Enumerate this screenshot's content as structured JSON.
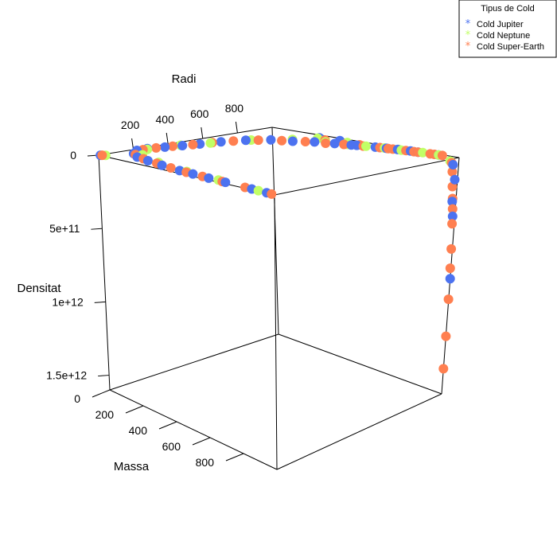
{
  "chart_data": {
    "type": "scatter",
    "title": "",
    "axes": {
      "x": {
        "label": "Massa",
        "ticks": [
          0,
          200,
          400,
          600,
          800
        ],
        "range": [
          0,
          1000
        ]
      },
      "y": {
        "label": "Radi",
        "ticks": [
          200,
          400,
          600,
          800
        ],
        "range": [
          0,
          1000
        ]
      },
      "z": {
        "label": "Densitat",
        "ticks": [
          0,
          500000000000,
          1000000000000,
          1500000000000
        ],
        "tick_labels": [
          "0",
          "5e+11",
          "1e+12",
          "1.5e+12"
        ],
        "range": [
          0,
          1600000000000
        ]
      }
    },
    "legend": {
      "title": "Tipus de Cold",
      "position": "top-right",
      "entries": [
        {
          "name": "Cold Jupiter",
          "color": "#4C72F0"
        },
        {
          "name": "Cold Neptune",
          "color": "#C2FF66"
        },
        {
          "name": "Cold Super-Earth",
          "color": "#FF7F50"
        }
      ]
    },
    "series": [
      {
        "name": "Cold Jupiter",
        "color": "#4C72F0",
        "points": [
          [
            950,
            5,
            1
          ],
          [
            860,
            10,
            2
          ],
          [
            700,
            20,
            3
          ],
          [
            600,
            25,
            4
          ],
          [
            500,
            35,
            5
          ],
          [
            420,
            40,
            6
          ],
          [
            300,
            60,
            7
          ],
          [
            200,
            80,
            8
          ],
          [
            120,
            100,
            9
          ],
          [
            60,
            140,
            10
          ],
          [
            20,
            200,
            10
          ],
          [
            20,
            260,
            12
          ],
          [
            40,
            340,
            14
          ],
          [
            60,
            420,
            15
          ],
          [
            80,
            500,
            16
          ],
          [
            100,
            600,
            18
          ],
          [
            140,
            700,
            20
          ],
          [
            200,
            780,
            25
          ],
          [
            280,
            820,
            30
          ],
          [
            350,
            870,
            35
          ],
          [
            430,
            900,
            40
          ],
          [
            520,
            930,
            60
          ],
          [
            600,
            950,
            100
          ],
          [
            700,
            970,
            150
          ],
          [
            760,
            980,
            200
          ],
          [
            980,
            990,
            50000000000
          ],
          [
            990,
            995,
            150000000000
          ],
          [
            985,
            995,
            300000000000
          ],
          [
            990,
            998,
            400000000000
          ],
          [
            1000,
            1000,
            820000000000
          ],
          [
            300,
            950,
            50
          ],
          [
            400,
            960,
            60
          ],
          [
            500,
            920,
            80
          ],
          [
            650,
            960,
            120
          ],
          [
            800,
            980,
            140
          ],
          [
            900,
            990,
            160
          ],
          [
            5,
            5,
            1
          ]
        ]
      },
      {
        "name": "Cold Neptune",
        "color": "#C2FF66",
        "points": [
          [
            900,
            8,
            1
          ],
          [
            650,
            30,
            2
          ],
          [
            450,
            50,
            3
          ],
          [
            250,
            90,
            4
          ],
          [
            100,
            150,
            5
          ],
          [
            30,
            250,
            6
          ],
          [
            50,
            420,
            8
          ],
          [
            90,
            550,
            9
          ],
          [
            150,
            720,
            12
          ],
          [
            250,
            850,
            15
          ],
          [
            380,
            900,
            18
          ],
          [
            480,
            920,
            25
          ],
          [
            560,
            940,
            40
          ],
          [
            640,
            960,
            70
          ],
          [
            720,
            970,
            100
          ],
          [
            820,
            985,
            130
          ],
          [
            900,
            990,
            170
          ],
          [
            300,
            940,
            30
          ],
          [
            450,
            950,
            60
          ],
          [
            700,
            975,
            90
          ],
          [
            960,
            993,
            30000000000
          ],
          [
            20,
            20,
            1
          ]
        ]
      },
      {
        "name": "Cold Super-Earth",
        "color": "#FF7F50",
        "points": [
          [
            980,
            3,
            1
          ],
          [
            820,
            12,
            2
          ],
          [
            680,
            22,
            2
          ],
          [
            560,
            30,
            3
          ],
          [
            460,
            38,
            4
          ],
          [
            360,
            50,
            5
          ],
          [
            260,
            70,
            6
          ],
          [
            160,
            95,
            7
          ],
          [
            80,
            130,
            8
          ],
          [
            25,
            230,
            9
          ],
          [
            30,
            300,
            11
          ],
          [
            45,
            380,
            13
          ],
          [
            70,
            470,
            14
          ],
          [
            90,
            560,
            16
          ],
          [
            120,
            650,
            17
          ],
          [
            170,
            740,
            19
          ],
          [
            240,
            800,
            22
          ],
          [
            320,
            850,
            27
          ],
          [
            400,
            880,
            33
          ],
          [
            470,
            910,
            45
          ],
          [
            550,
            935,
            55
          ],
          [
            620,
            955,
            75
          ],
          [
            680,
            965,
            95
          ],
          [
            740,
            975,
            110
          ],
          [
            800,
            980,
            125
          ],
          [
            860,
            985,
            150
          ],
          [
            920,
            990,
            180
          ],
          [
            970,
            992,
            40000000000
          ],
          [
            975,
            994,
            100000000000
          ],
          [
            980,
            995,
            200000000000
          ],
          [
            985,
            996,
            280000000000
          ],
          [
            988,
            997,
            350000000000
          ],
          [
            990,
            998,
            450000000000
          ],
          [
            995,
            999,
            620000000000
          ],
          [
            997,
            999,
            750000000000
          ],
          [
            999,
            1000,
            960000000000
          ],
          [
            1000,
            1000,
            1210000000000
          ],
          [
            1000,
            1000,
            1430000000000
          ],
          [
            350,
            930,
            40
          ],
          [
            520,
            945,
            70
          ],
          [
            660,
            960,
            85
          ],
          [
            780,
            978,
            115
          ],
          [
            880,
            988,
            155
          ],
          [
            10,
            10,
            1
          ]
        ]
      }
    ]
  }
}
